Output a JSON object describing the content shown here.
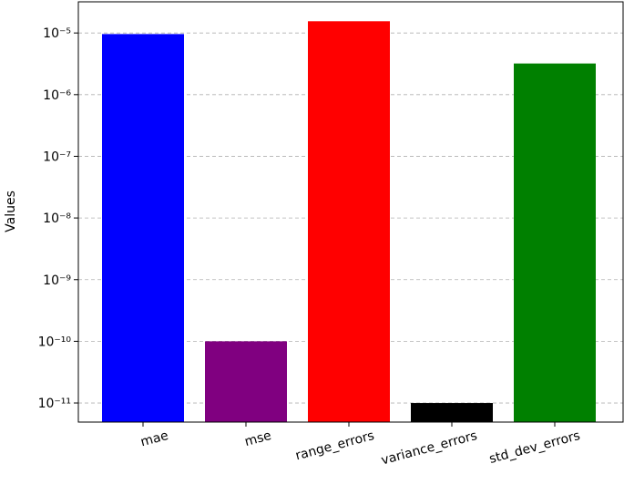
{
  "chart_data": {
    "type": "bar",
    "y_label": "Values",
    "categories": [
      "mae",
      "mse",
      "range_errors",
      "variance_errors",
      "std_dev_errors"
    ],
    "values": [
      9.6e-06,
      1e-10,
      1.55e-05,
      1e-11,
      3.2e-06
    ],
    "colors": [
      "#0000ff",
      "#800080",
      "#ff0000",
      "#000000",
      "#008000"
    ],
    "log_scale": true,
    "grid": true,
    "ylim": [
      4.9e-12,
      3.2e-05
    ],
    "yticks": [
      {
        "value": 1e-11,
        "label": "10⁻¹¹"
      },
      {
        "value": 1e-10,
        "label": "10⁻¹⁰"
      },
      {
        "value": 1e-09,
        "label": "10⁻⁹"
      },
      {
        "value": 1e-08,
        "label": "10⁻⁸"
      },
      {
        "value": 1e-07,
        "label": "10⁻⁷"
      },
      {
        "value": 1e-06,
        "label": "10⁻⁶"
      },
      {
        "value": 1e-05,
        "label": "10⁻⁵"
      }
    ]
  }
}
